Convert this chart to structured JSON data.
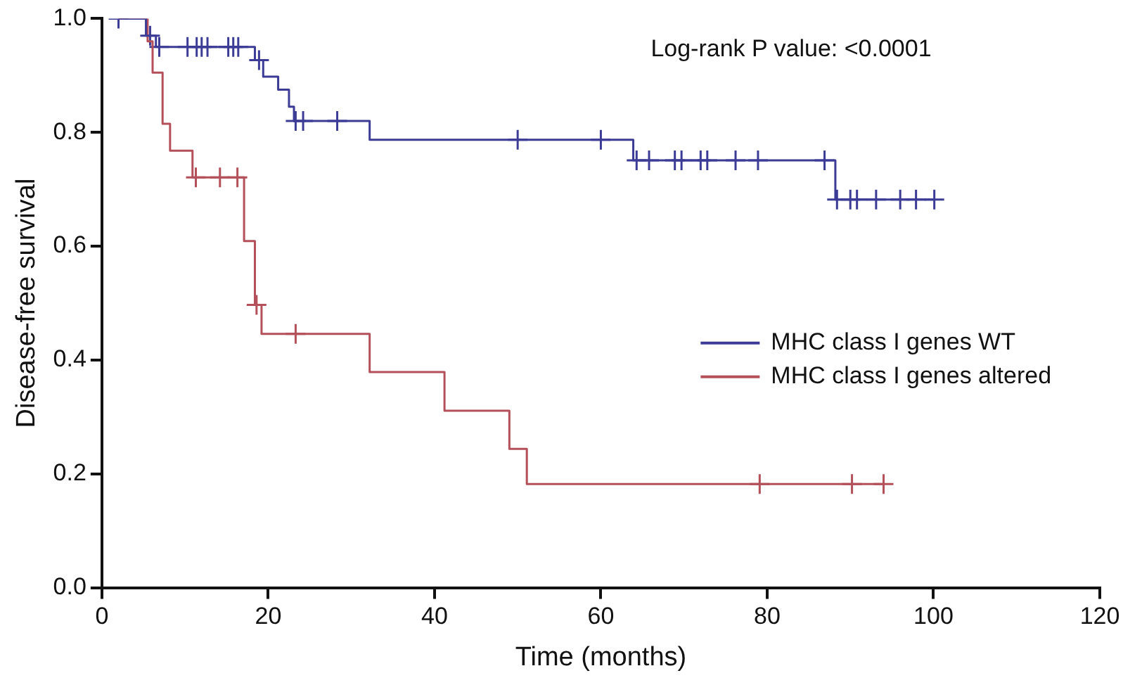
{
  "chart_data": {
    "type": "step",
    "xlabel": "Time (months)",
    "ylabel": "Disease-free survival",
    "annotations": [
      "Log-rank P value: <0.0001"
    ],
    "xlim": [
      0,
      120
    ],
    "xticks": [
      0,
      20,
      40,
      60,
      80,
      100,
      120
    ],
    "ylim": [
      0,
      1
    ],
    "yticks": [
      {
        "value": 0,
        "label": "0.0"
      },
      {
        "value": 0.2,
        "label": "0.2"
      },
      {
        "value": 0.4,
        "label": "0.4"
      },
      {
        "value": 0.6,
        "label": "0.6"
      },
      {
        "value": 0.8,
        "label": "0.8"
      },
      {
        "value": 1,
        "label": "1.0"
      }
    ],
    "grid": false,
    "legend": "right",
    "line_style": "solid",
    "series": [
      {
        "name": "MHC class I genes WT",
        "color": "#3c3c96",
        "x": [
          2,
          5.3,
          6.5,
          18.4,
          19.4,
          21.2,
          22.5,
          23.1,
          32.2,
          63.9,
          88.2,
          100
        ],
        "values": [
          1,
          0.97,
          0.95,
          0.927,
          0.898,
          0.875,
          0.845,
          0.82,
          0.787,
          0.751,
          0.682,
          0.682
        ]
      },
      {
        "name": "MHC class I genes altered",
        "color": "#b4505a",
        "x": [
          2,
          5.5,
          6.1,
          7.3,
          8.2,
          10.9,
          17.1,
          18.4,
          19.2,
          32.2,
          41.2,
          49,
          51.1,
          94
        ],
        "values": [
          1,
          0.96,
          0.905,
          0.815,
          0.768,
          0.721,
          0.609,
          0.497,
          0.446,
          0.379,
          0.311,
          0.244,
          0.182,
          0.182
        ]
      },
      {
        "type": "scatter",
        "marker": "cross",
        "color": "#3c3c96",
        "x": [
          2,
          5.8,
          6.9,
          10.3,
          11.4,
          12,
          12.7,
          15.2,
          15.8,
          16.4,
          18.9,
          23.3,
          24.2,
          28.3,
          50,
          60,
          64.3,
          65.8,
          68.9,
          69.7,
          72,
          72.8,
          76.2,
          78.9,
          86.9,
          88.4,
          90,
          90.8,
          93.1,
          96,
          97.9,
          100.1
        ],
        "values": [
          1,
          0.97,
          0.95,
          0.95,
          0.95,
          0.95,
          0.95,
          0.95,
          0.95,
          0.95,
          0.927,
          0.82,
          0.82,
          0.82,
          0.787,
          0.787,
          0.751,
          0.751,
          0.751,
          0.751,
          0.751,
          0.751,
          0.751,
          0.751,
          0.751,
          0.682,
          0.682,
          0.682,
          0.682,
          0.682,
          0.682,
          0.682
        ]
      },
      {
        "type": "scatter",
        "marker": "cross",
        "color": "#b4505a",
        "x": [
          11.3,
          14.2,
          16.3,
          18.6,
          23.3,
          79.1,
          90.2,
          94
        ],
        "values": [
          0.721,
          0.721,
          0.721,
          0.497,
          0.446,
          0.182,
          0.182,
          0.182
        ]
      }
    ]
  }
}
